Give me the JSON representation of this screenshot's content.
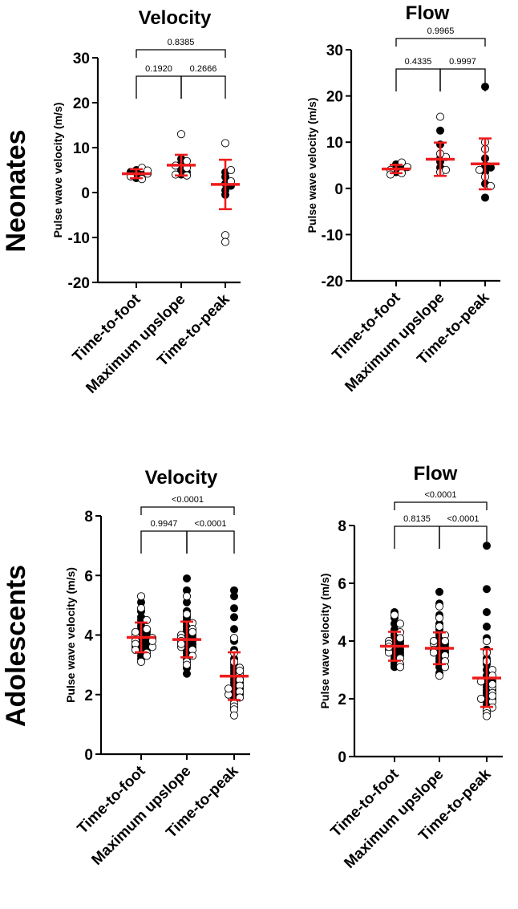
{
  "row_labels": [
    "Neonates",
    "Adolescents"
  ],
  "chart_data": [
    {
      "type": "scatter",
      "title": "Velocity",
      "group": "Neonates",
      "ylabel": "Pulse wave velocity (m/s)",
      "ylim": [
        -20,
        30
      ],
      "yticks": [
        -20,
        -10,
        0,
        10,
        20,
        30
      ],
      "categories": [
        "Time-to-foot",
        "Maximum upslope",
        "Time-to-peak"
      ],
      "mean": [
        4.2,
        6.1,
        1.8
      ],
      "sd": [
        1.0,
        2.3,
        5.5
      ],
      "comparisons": [
        {
          "from": 0,
          "to": 2,
          "p": "0.8385"
        },
        {
          "from": 0,
          "to": 1,
          "p": "0.1920"
        },
        {
          "from": 1,
          "to": 2,
          "p": "0.2666"
        }
      ],
      "points_filled": [
        [
          3.2,
          4.0,
          4.5,
          5.0,
          3.8,
          4.6
        ],
        [
          4.0,
          7.5,
          6.5,
          5.0,
          4.5
        ],
        [
          4.5,
          3.5,
          2.0,
          0.5,
          1.5,
          -0.5
        ]
      ],
      "points_open": [
        [
          4.2,
          3.0,
          5.5,
          3.6,
          4.9
        ],
        [
          13.0,
          5.5,
          7.0,
          4.0,
          6.0,
          3.8
        ],
        [
          11.0,
          -9.5,
          -11.0,
          5.0,
          2.5
        ]
      ]
    },
    {
      "type": "scatter",
      "title": "Flow",
      "group": "Neonates",
      "ylabel": "Pulse wave velocity (m/s)",
      "ylim": [
        -20,
        30
      ],
      "yticks": [
        -20,
        -10,
        0,
        10,
        20,
        30
      ],
      "categories": [
        "Time-to-foot",
        "Maximum upslope",
        "Time-to-peak"
      ],
      "mean": [
        4.2,
        6.3,
        5.3
      ],
      "sd": [
        0.9,
        3.6,
        5.5
      ],
      "comparisons": [
        {
          "from": 0,
          "to": 2,
          "p": "0.9965"
        },
        {
          "from": 0,
          "to": 1,
          "p": "0.4335"
        },
        {
          "from": 1,
          "to": 2,
          "p": "0.9997"
        }
      ],
      "points_filled": [
        [
          3.5,
          4.3,
          4.8,
          3.9,
          5.2
        ],
        [
          12.5,
          9.5,
          6.5,
          4.5,
          5.8
        ],
        [
          22.0,
          6.5,
          5.0,
          3.5,
          1.0,
          -2.0,
          4.5
        ]
      ],
      "points_open": [
        [
          4.0,
          3.3,
          5.6,
          4.6,
          3.0
        ],
        [
          15.5,
          3.5,
          6.8,
          4.0,
          7.5
        ],
        [
          10.0,
          8.5,
          4.0,
          2.5,
          0.5
        ]
      ]
    },
    {
      "type": "scatter",
      "title": "Velocity",
      "group": "Adolescents",
      "ylabel": "Pulse wave velocity (m/s)",
      "ylim": [
        0,
        8
      ],
      "yticks": [
        0,
        2,
        4,
        6,
        8
      ],
      "categories": [
        "Time-to-foot",
        "Maximum upslope",
        "Time-to-peak"
      ],
      "mean": [
        3.92,
        3.85,
        2.62
      ],
      "sd": [
        0.5,
        0.6,
        0.8
      ],
      "comparisons": [
        {
          "from": 0,
          "to": 2,
          "p": "<0.0001"
        },
        {
          "from": 0,
          "to": 1,
          "p": "0.9947"
        },
        {
          "from": 1,
          "to": 2,
          "p": "<0.0001"
        }
      ],
      "points_filled": [
        [
          5.1,
          4.8,
          4.6,
          4.4,
          4.3,
          4.2,
          4.1,
          4.0,
          4.0,
          3.9,
          3.9,
          3.8,
          3.8,
          3.7,
          3.7,
          3.6,
          3.6,
          3.5,
          3.5,
          3.4,
          3.3,
          3.2,
          4.5,
          4.1,
          3.9,
          3.6
        ],
        [
          5.9,
          5.5,
          5.1,
          4.8,
          4.6,
          4.4,
          4.3,
          4.2,
          4.1,
          4.0,
          3.9,
          3.9,
          3.8,
          3.8,
          3.7,
          3.6,
          3.6,
          3.5,
          3.4,
          3.3,
          3.2,
          2.9,
          2.7,
          4.5,
          4.0,
          3.7
        ],
        [
          5.5,
          5.3,
          4.9,
          4.6,
          4.2,
          3.8,
          3.5,
          3.2,
          3.0,
          2.9,
          2.8,
          2.7,
          2.6,
          2.5,
          2.4,
          2.3,
          2.2,
          2.1,
          2.0,
          1.9,
          1.8,
          2.6,
          2.4,
          2.2,
          2.0
        ]
      ],
      "points_open": [
        [
          5.3,
          4.9,
          4.5,
          4.2,
          4.0,
          3.9,
          3.8,
          3.7,
          3.6,
          3.5,
          3.4,
          3.3,
          3.1,
          4.1,
          3.8
        ],
        [
          5.3,
          4.7,
          4.4,
          4.2,
          4.0,
          3.9,
          3.8,
          3.6,
          3.5,
          3.3,
          3.1,
          3.0,
          4.1,
          3.7
        ],
        [
          3.9,
          3.4,
          3.1,
          2.9,
          2.7,
          2.5,
          2.3,
          2.1,
          2.0,
          1.9,
          1.7,
          1.6,
          1.5,
          1.3,
          2.8,
          2.2
        ]
      ]
    },
    {
      "type": "scatter",
      "title": "Flow",
      "group": "Adolescents",
      "ylabel": "Pulse wave velocity (m/s)",
      "ylim": [
        0,
        8
      ],
      "yticks": [
        0,
        2,
        4,
        6,
        8
      ],
      "categories": [
        "Time-to-foot",
        "Maximum upslope",
        "Time-to-peak"
      ],
      "mean": [
        3.82,
        3.75,
        2.72
      ],
      "sd": [
        0.5,
        0.55,
        1.0
      ],
      "comparisons": [
        {
          "from": 0,
          "to": 2,
          "p": "<0.0001"
        },
        {
          "from": 0,
          "to": 1,
          "p": "0.8135"
        },
        {
          "from": 1,
          "to": 2,
          "p": "<0.0001"
        }
      ],
      "points_filled": [
        [
          5.0,
          4.8,
          4.6,
          4.4,
          4.2,
          4.1,
          4.0,
          3.9,
          3.9,
          3.8,
          3.8,
          3.7,
          3.7,
          3.6,
          3.5,
          3.5,
          3.4,
          3.3,
          3.2,
          3.1,
          4.3,
          4.0,
          3.6
        ],
        [
          5.7,
          5.3,
          4.9,
          4.6,
          4.4,
          4.2,
          4.1,
          4.0,
          3.9,
          3.8,
          3.8,
          3.7,
          3.6,
          3.6,
          3.5,
          3.4,
          3.3,
          3.2,
          3.1,
          2.9,
          4.3,
          3.9,
          3.7
        ],
        [
          7.3,
          5.8,
          5.0,
          4.5,
          4.1,
          3.7,
          3.4,
          3.2,
          3.0,
          2.8,
          2.7,
          2.6,
          2.5,
          2.4,
          2.3,
          2.2,
          2.1,
          2.0,
          1.9,
          1.8,
          1.7,
          2.6,
          2.3,
          2.0
        ]
      ],
      "points_open": [
        [
          4.9,
          4.6,
          4.3,
          4.0,
          3.9,
          3.7,
          3.6,
          3.4,
          3.2,
          3.1,
          4.1,
          3.8
        ],
        [
          5.2,
          4.8,
          4.5,
          4.2,
          4.0,
          3.9,
          3.7,
          3.5,
          3.3,
          3.1,
          2.8,
          4.0,
          3.6
        ],
        [
          4.0,
          3.6,
          3.3,
          3.0,
          2.8,
          2.6,
          2.4,
          2.2,
          2.0,
          1.9,
          1.7,
          1.6,
          1.5,
          1.4,
          2.5,
          2.1
        ]
      ]
    }
  ]
}
